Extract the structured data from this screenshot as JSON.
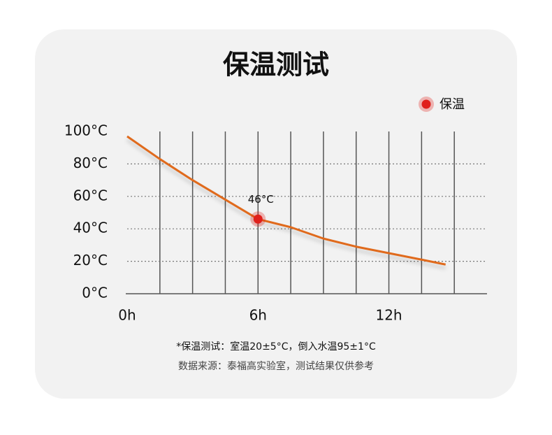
{
  "chart_data": {
    "type": "line",
    "title": "保温测试",
    "x": [
      0,
      1.5,
      3,
      4.5,
      6,
      7.5,
      9,
      10.5,
      12,
      13.5,
      14.6
    ],
    "series": [
      {
        "name": "保温",
        "color": "#e06a1c",
        "marker_color": "#e0201c",
        "values": [
          97,
          83,
          70,
          58,
          46,
          41,
          34,
          29,
          25,
          21,
          18
        ]
      }
    ],
    "highlight": {
      "x": 6,
      "value": 46,
      "label": "46°C"
    },
    "xlim": [
      0,
      16.5
    ],
    "xticks": [
      {
        "value": 0,
        "label": "0h"
      },
      {
        "value": 6,
        "label": "6h"
      },
      {
        "value": 12,
        "label": "12h"
      }
    ],
    "xgrid": [
      1.5,
      3,
      4.5,
      6,
      7.5,
      9,
      10.5,
      12,
      13.5,
      15
    ],
    "ylim": [
      0,
      100
    ],
    "yticks": [
      {
        "value": 0,
        "label": "0°C"
      },
      {
        "value": 20,
        "label": "20°C"
      },
      {
        "value": 40,
        "label": "40°C"
      },
      {
        "value": 60,
        "label": "60°C"
      },
      {
        "value": 80,
        "label": "80°C"
      },
      {
        "value": 100,
        "label": "100°C"
      }
    ],
    "grid": true,
    "legend": "top-right",
    "notes": [
      "*保温测试：室温20±5°C，倒入水温95±1°C",
      "数据来源：泰福高实验室，测试结果仅供参考"
    ]
  }
}
